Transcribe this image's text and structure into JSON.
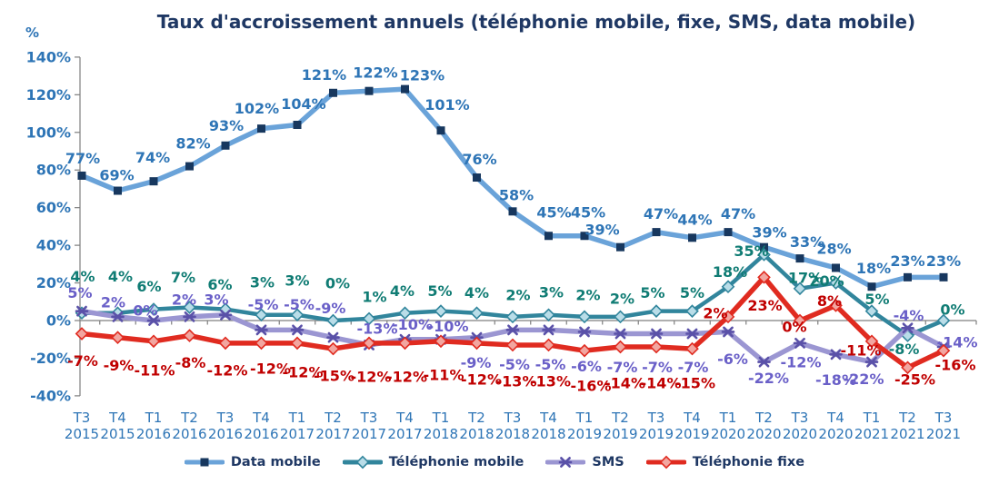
{
  "title": "Taux d'accroissement annuels (téléphonie mobile, fixe, SMS, data mobile)",
  "chart_data": {
    "type": "line",
    "title": "Taux d'accroissement annuels (téléphonie mobile, fixe, SMS, data mobile)",
    "y_unit": "%",
    "ylim": [
      -40,
      140
    ],
    "y_tick_step": 20,
    "y_tick_labels": [
      "140%",
      "120%",
      "100%",
      "80%",
      "60%",
      "40%",
      "20%",
      "0%",
      "-20%",
      "-40%"
    ],
    "grid": false,
    "legend_position": "bottom",
    "axis_color": "#7F7F7F",
    "tick_label_color": "#2E75B6",
    "title_color": "#1F3864",
    "categories": [
      "T3 2015",
      "T4 2015",
      "T1 2016",
      "T2 2016",
      "T3 2016",
      "T4 2016",
      "T1 2017",
      "T2 2017",
      "T3 2017",
      "T4 2017",
      "T1 2018",
      "T2 2018",
      "T3 2018",
      "T4 2018",
      "T1 2019",
      "T2 2019",
      "T3 2019",
      "T4 2019",
      "T1 2020",
      "T2 2020",
      "T3 2020",
      "T4 2020",
      "T1 2021",
      "T2 2021",
      "T3 2021"
    ],
    "series": [
      {
        "name": "Data mobile",
        "marker": "square",
        "line_color": "#6AA3D9",
        "marker_fill": "#17375E",
        "marker_stroke": "#17375E",
        "label_color": "#2E75B6",
        "values": [
          77,
          69,
          74,
          82,
          93,
          102,
          104,
          121,
          122,
          123,
          101,
          76,
          58,
          45,
          45,
          39,
          47,
          44,
          47,
          39,
          33,
          28,
          18,
          23,
          23
        ]
      },
      {
        "name": "Téléphonie mobile",
        "marker": "diamond",
        "line_color": "#31859C",
        "marker_fill": "#B9DDE8",
        "marker_stroke": "#31859C",
        "label_color": "#107C74",
        "values": [
          4,
          4,
          6,
          7,
          6,
          3,
          3,
          0,
          1,
          4,
          5,
          4,
          2,
          3,
          2,
          2,
          5,
          5,
          18,
          35,
          17,
          20,
          5,
          -8,
          0
        ]
      },
      {
        "name": "SMS",
        "marker": "asterisk",
        "line_color": "#9B96D2",
        "marker_fill": "#5A51A8",
        "marker_stroke": "#5A51A8",
        "label_color": "#6A60C8",
        "values": [
          5,
          2,
          0,
          2,
          3,
          -5,
          -5,
          -9,
          -13,
          -10,
          -10,
          -9,
          -5,
          -5,
          -6,
          -7,
          -7,
          -7,
          -6,
          -22,
          -12,
          -18,
          -22,
          -4,
          -14
        ]
      },
      {
        "name": "Téléphonie fixe",
        "marker": "diamond",
        "line_color": "#E02B20",
        "marker_fill": "#F2A6A0",
        "marker_stroke": "#E02B20",
        "label_color": "#C00000",
        "values": [
          -7,
          -9,
          -11,
          -8,
          -12,
          -12,
          -12,
          -15,
          -12,
          -12,
          -11,
          -12,
          -13,
          -13,
          -16,
          -14,
          -14,
          -15,
          2,
          23,
          0,
          8,
          -11,
          -25,
          -16
        ]
      }
    ]
  }
}
